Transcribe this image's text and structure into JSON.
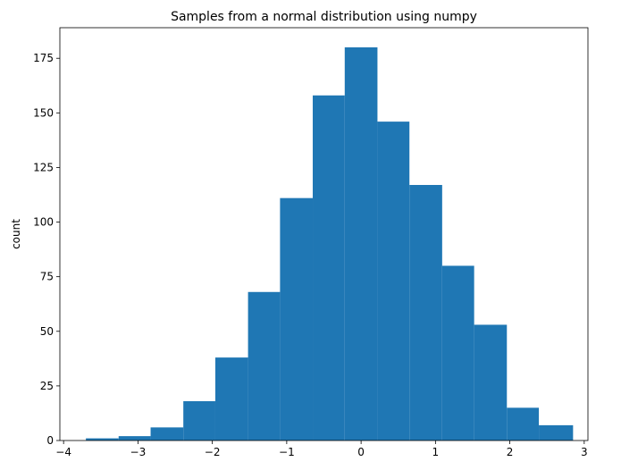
{
  "chart_data": {
    "type": "bar",
    "title": "Samples from a normal distribution using numpy",
    "xlabel": "",
    "ylabel": "count",
    "xlim": [
      -4.05,
      3.05
    ],
    "ylim": [
      0,
      189
    ],
    "grid": false,
    "legend": "none",
    "bar_color": "#1f77b4",
    "xticks": [
      -4,
      -3,
      -2,
      -1,
      0,
      1,
      2,
      3
    ],
    "xtick_labels": [
      "−4",
      "−3",
      "−2",
      "−1",
      "0",
      "1",
      "2",
      "3"
    ],
    "yticks": [
      0,
      25,
      50,
      75,
      100,
      125,
      150,
      175
    ],
    "ytick_labels": [
      "0",
      "25",
      "50",
      "75",
      "100",
      "125",
      "150",
      "175"
    ],
    "bins": [
      {
        "x0": -3.7,
        "x1": -3.26,
        "count": 1
      },
      {
        "x0": -3.26,
        "x1": -2.83,
        "count": 2
      },
      {
        "x0": -2.83,
        "x1": -2.39,
        "count": 6
      },
      {
        "x0": -2.39,
        "x1": -1.96,
        "count": 18
      },
      {
        "x0": -1.96,
        "x1": -1.52,
        "count": 38
      },
      {
        "x0": -1.52,
        "x1": -1.09,
        "count": 68
      },
      {
        "x0": -1.09,
        "x1": -0.65,
        "count": 111
      },
      {
        "x0": -0.65,
        "x1": -0.22,
        "count": 158
      },
      {
        "x0": -0.22,
        "x1": 0.22,
        "count": 180
      },
      {
        "x0": 0.22,
        "x1": 0.65,
        "count": 146
      },
      {
        "x0": 0.65,
        "x1": 1.09,
        "count": 117
      },
      {
        "x0": 1.09,
        "x1": 1.52,
        "count": 80
      },
      {
        "x0": 1.52,
        "x1": 1.96,
        "count": 53
      },
      {
        "x0": 1.96,
        "x1": 2.39,
        "count": 15
      },
      {
        "x0": 2.39,
        "x1": 2.85,
        "count": 7
      }
    ]
  }
}
